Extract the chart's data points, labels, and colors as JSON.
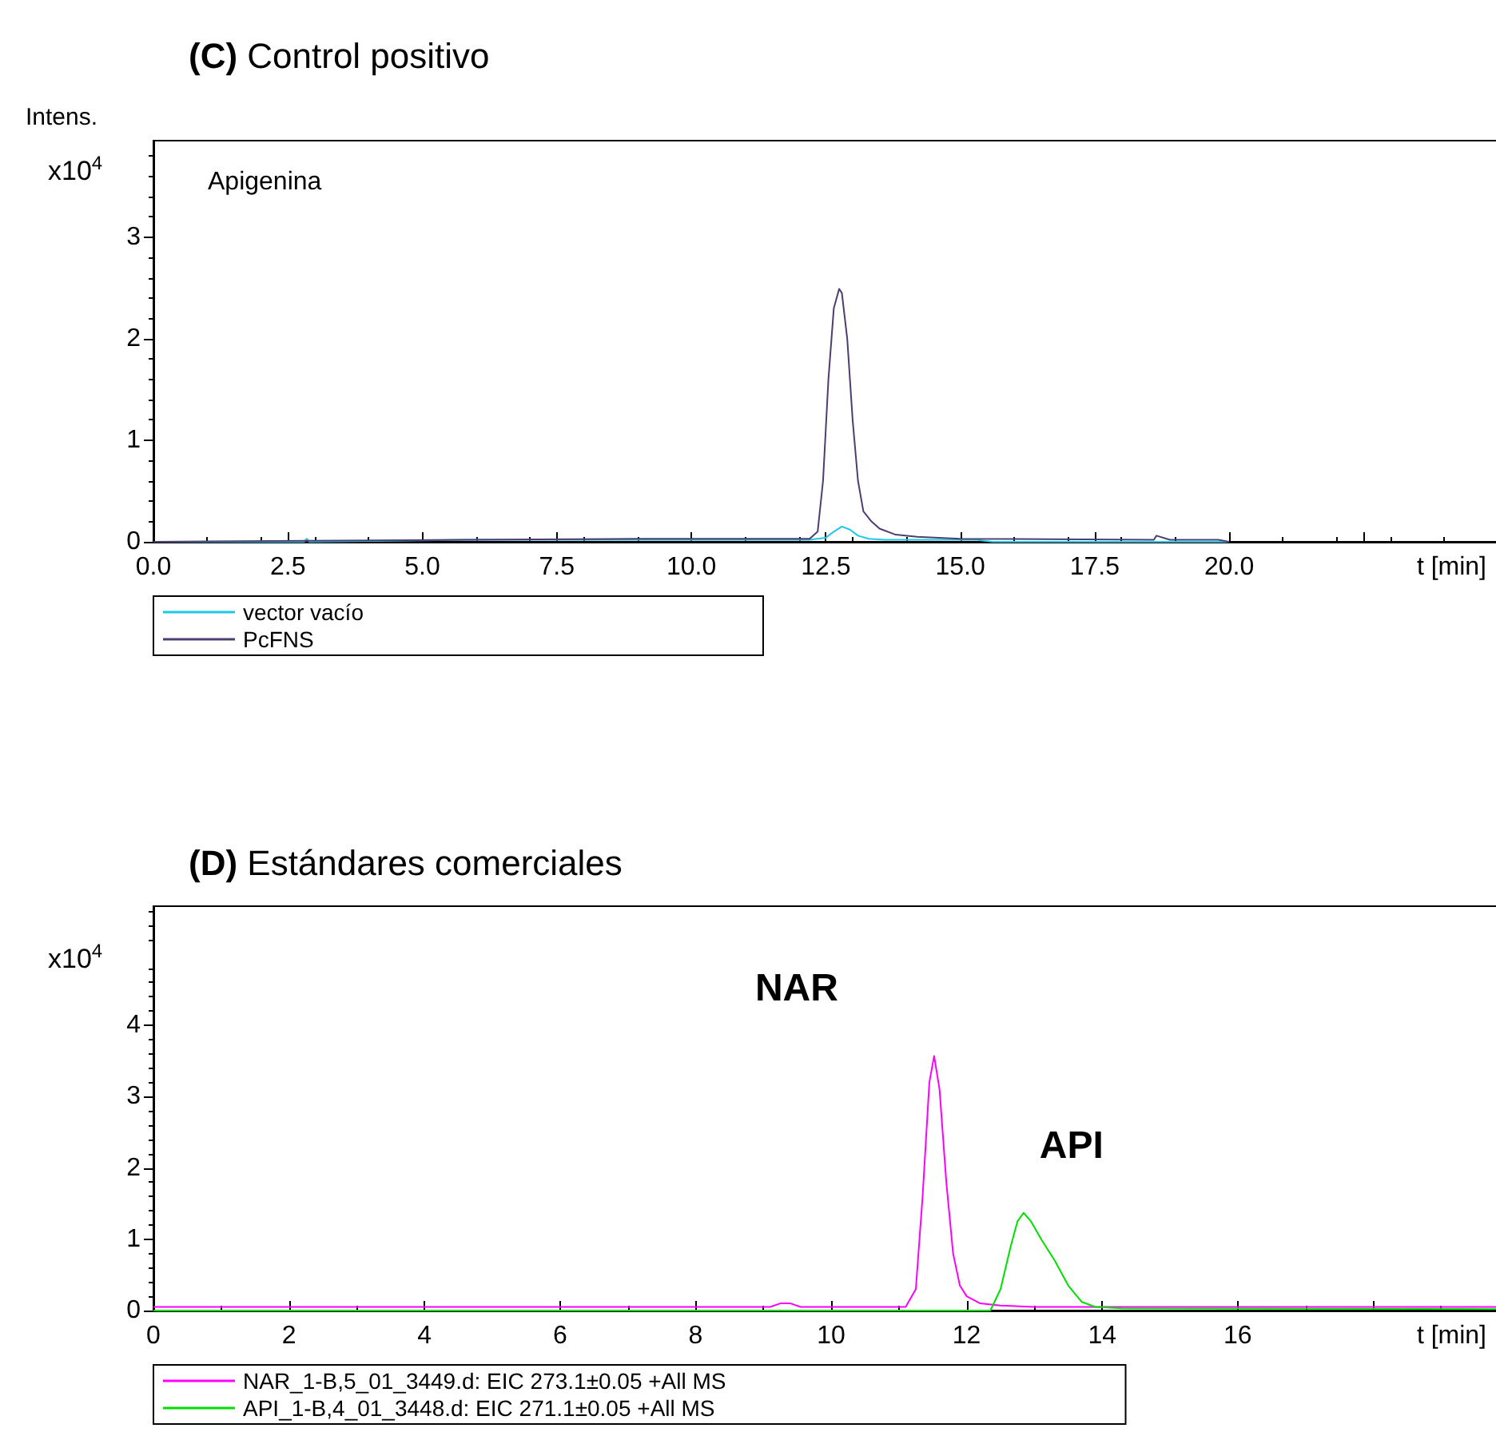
{
  "chart_data": [
    {
      "type": "line",
      "title": "(C) Control positivo",
      "ylabel": "Intens.",
      "xlabel": "t [min]",
      "annotations": [
        "x10$^{4}$",
        "Apigenina"
      ],
      "xlim": [
        0,
        25.2
      ],
      "ylim": [
        0,
        3.95
      ],
      "xticks": [
        {
          "value": 0,
          "label": "0.0"
        },
        2.5,
        {
          "value": 5,
          "label": "5.0"
        },
        7.5,
        {
          "value": 10,
          "label": "10.0"
        },
        12.5,
        {
          "value": 15,
          "label": "15.0"
        },
        17.5,
        {
          "value": 20,
          "label": "20.0"
        },
        {
          "value": 22.5,
          "label": null
        },
        {
          "value": 25,
          "label": null
        }
      ],
      "yticks": [
        0,
        1,
        2,
        3
      ],
      "legend": "bottom",
      "marker": "none",
      "series": [
        {
          "name": "vector vacío",
          "color": "#1ec8e6",
          "x": [
            0,
            2.8,
            2.85,
            2.9,
            5.8,
            8,
            10,
            12.2,
            12.5,
            12.65,
            12.8,
            12.95,
            13.1,
            13.3,
            13.6,
            15.2,
            15.3,
            15.6,
            20
          ],
          "values": [
            0,
            0,
            0.03,
            0,
            0.02,
            0.02,
            0.02,
            0.02,
            0.04,
            0.1,
            0.15,
            0.12,
            0.06,
            0.03,
            0.02,
            0.02,
            0.02,
            0,
            0
          ]
        },
        {
          "name": "PcFNS",
          "color": "#4f3d70",
          "x": [
            0,
            5.8,
            9,
            12.2,
            12.35,
            12.45,
            12.55,
            12.65,
            12.75,
            12.8,
            12.9,
            13,
            13.1,
            13.2,
            13.35,
            13.5,
            13.8,
            14.2,
            15,
            18.6,
            18.65,
            18.9,
            19.8,
            20
          ],
          "values": [
            0,
            0.02,
            0.03,
            0.03,
            0.1,
            0.6,
            1.6,
            2.3,
            2.49,
            2.45,
            2.0,
            1.2,
            0.6,
            0.3,
            0.2,
            0.13,
            0.07,
            0.05,
            0.03,
            0.02,
            0.06,
            0.02,
            0.02,
            0
          ]
        }
      ]
    },
    {
      "type": "line",
      "title": "(D) Estándares comerciales",
      "xlabel": "t [min]",
      "annotations": [
        "x10$^{4}$",
        {
          "text": "NAR",
          "x": 11.52,
          "y": 3.57
        },
        {
          "text": "API",
          "x": 12.84,
          "y": 1.37
        }
      ],
      "xlim": [
        0,
        20
      ],
      "ylim": [
        0,
        5.67
      ],
      "xticks": [
        0,
        2,
        4,
        6,
        8,
        10,
        12,
        14,
        16,
        {
          "value": 18,
          "label": null
        }
      ],
      "yticks": [
        0,
        1,
        2,
        3,
        4
      ],
      "legend": "bottom",
      "marker": "none",
      "series": [
        {
          "name": "NAR_1-B,5_01_3449.d: EIC 273.1±0.05 +All MS",
          "color": "#ff00ff",
          "x": [
            0,
            9.1,
            9.25,
            9.4,
            9.55,
            11.1,
            11.25,
            11.35,
            11.45,
            11.52,
            11.6,
            11.7,
            11.8,
            11.9,
            12,
            12.2,
            12.5,
            13,
            20
          ],
          "values": [
            0.05,
            0.05,
            0.1,
            0.1,
            0.05,
            0.05,
            0.3,
            1.6,
            3.2,
            3.57,
            3.1,
            1.8,
            0.8,
            0.35,
            0.2,
            0.1,
            0.07,
            0.05,
            0.05
          ]
        },
        {
          "name": "API_1-B,4_01_3448.d: EIC 271.1±0.05 +All MS",
          "color": "#00e000",
          "x": [
            0,
            12.35,
            12.5,
            12.65,
            12.75,
            12.84,
            12.95,
            13.1,
            13.3,
            13.5,
            13.7,
            13.9,
            14.3,
            20
          ],
          "values": [
            0,
            0,
            0.3,
            0.9,
            1.25,
            1.37,
            1.25,
            1.0,
            0.7,
            0.35,
            0.12,
            0.05,
            0.03,
            0.02
          ]
        }
      ]
    }
  ]
}
